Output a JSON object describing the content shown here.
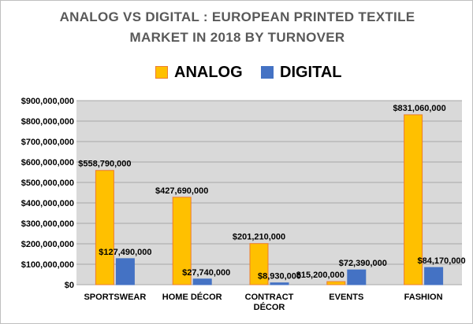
{
  "chart_data": {
    "type": "bar",
    "title_lines": [
      "ANALOG VS DIGITAL : EUROPEAN PRINTED TEXTILE",
      "MARKET IN 2018 BY TURNOVER"
    ],
    "categories": [
      [
        "SPORTSWEAR"
      ],
      [
        "HOME DÉCOR"
      ],
      [
        "CONTRACT",
        "DÉCOR"
      ],
      [
        "EVENTS"
      ],
      [
        "FASHION"
      ]
    ],
    "series": [
      {
        "name": "ANALOG",
        "color": "#FFC000",
        "stroke": "#ED7D31",
        "values": [
          558790000,
          427690000,
          201210000,
          15200000,
          831060000
        ],
        "labels": [
          "$558,790,000",
          "$427,690,000",
          "$201,210,000",
          "$15,200,000",
          "$831,060,000"
        ]
      },
      {
        "name": "DIGITAL",
        "color": "#4472C4",
        "stroke": "#4472C4",
        "values": [
          127490000,
          27740000,
          8930000,
          72390000,
          84170000
        ],
        "labels": [
          "$127,490,000",
          "$27,740,000",
          "$8,930,000",
          "$72,390,000",
          "$84,170,000"
        ]
      }
    ],
    "y_ticks": [
      0,
      100000000,
      200000000,
      300000000,
      400000000,
      500000000,
      600000000,
      700000000,
      800000000,
      900000000
    ],
    "y_tick_labels": [
      "$0",
      "$100,000,000",
      "$200,000,000",
      "$300,000,000",
      "$400,000,000",
      "$500,000,000",
      "$600,000,000",
      "$700,000,000",
      "$800,000,000",
      "$900,000,000"
    ],
    "ylim": [
      0,
      900000000
    ],
    "xlabel": "",
    "ylabel": "",
    "grid": true,
    "plot_background": "#D9D9D9",
    "legend_position": "top"
  }
}
